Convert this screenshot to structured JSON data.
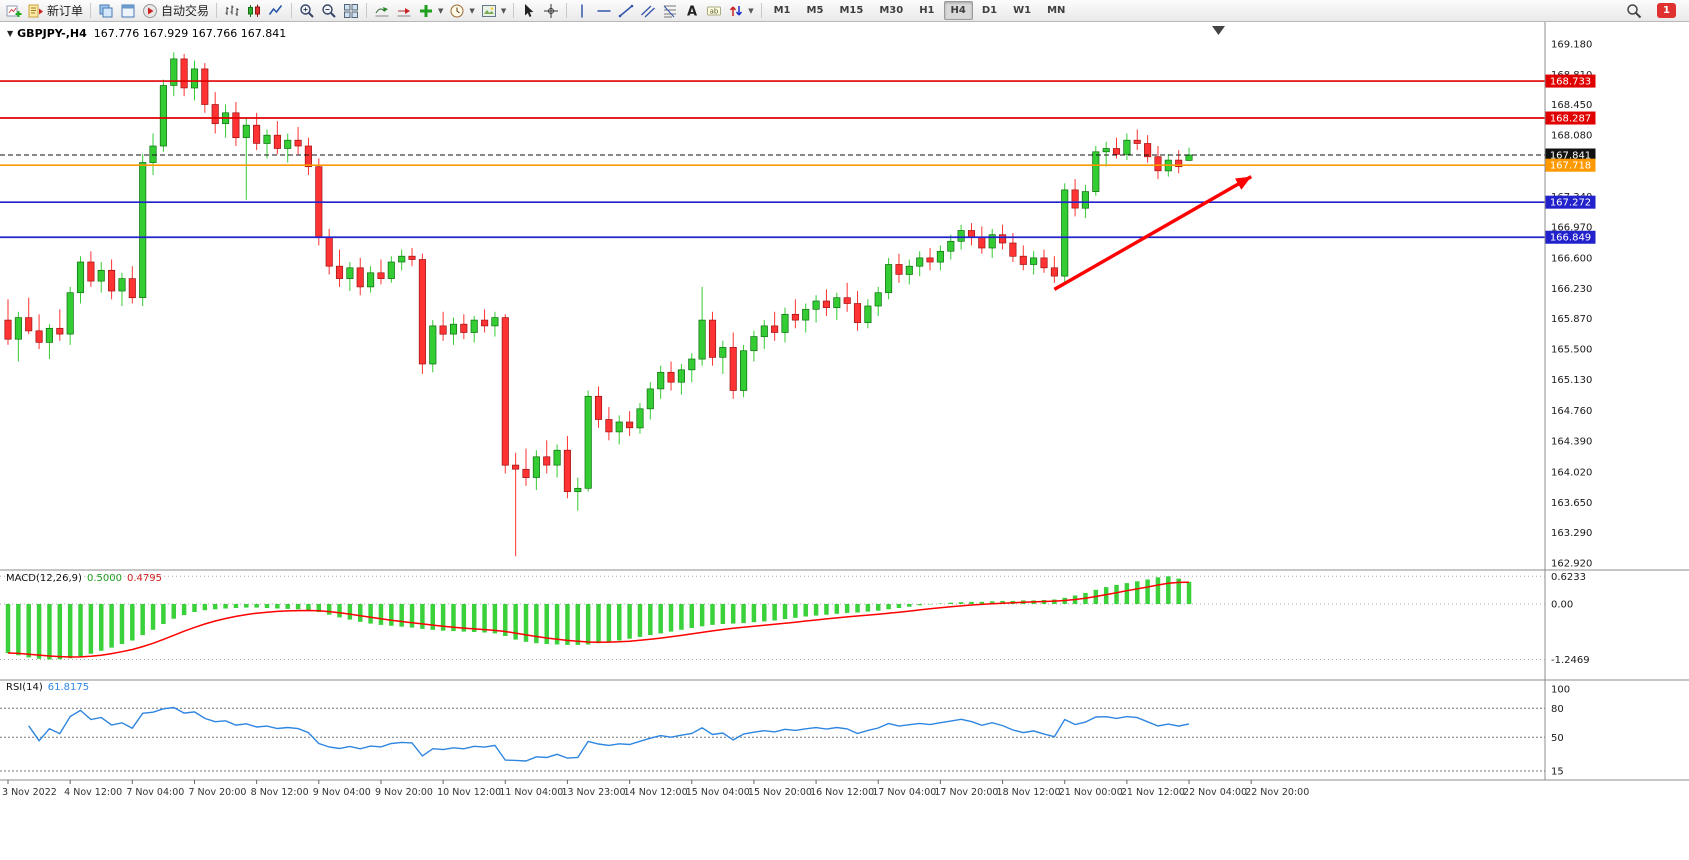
{
  "toolbar": {
    "items": [
      {
        "type": "icon",
        "name": "new-chart-icon",
        "icon": "chart-plus"
      },
      {
        "type": "button",
        "name": "new-order-button",
        "icon": "order",
        "label": "新订单"
      },
      {
        "type": "sep"
      },
      {
        "type": "icon",
        "name": "market-watch-icon",
        "icon": "layers"
      },
      {
        "type": "icon",
        "name": "navigator-icon",
        "icon": "window"
      },
      {
        "type": "button",
        "name": "autotrading-button",
        "icon": "play-red",
        "label": "自动交易"
      },
      {
        "type": "sep"
      },
      {
        "type": "icon",
        "name": "bar-chart-icon",
        "icon": "bars"
      },
      {
        "type": "icon",
        "name": "candlestick-chart-icon",
        "icon": "candles"
      },
      {
        "type": "icon",
        "name": "line-chart-icon",
        "icon": "linechart"
      },
      {
        "type": "sep"
      },
      {
        "type": "icon",
        "name": "zoom-in-icon",
        "icon": "zoom-in"
      },
      {
        "type": "icon",
        "name": "zoom-out-icon",
        "icon": "zoom-out"
      },
      {
        "type": "icon",
        "name": "tile-windows-icon",
        "icon": "grid"
      },
      {
        "type": "sep"
      },
      {
        "type": "icon",
        "name": "auto-scroll-icon",
        "icon": "autoscroll"
      },
      {
        "type": "icon",
        "name": "chart-shift-icon",
        "icon": "shift"
      },
      {
        "type": "icon-drop",
        "name": "indicators-menu-icon",
        "icon": "plus-green"
      },
      {
        "type": "icon-drop",
        "name": "periods-menu-icon",
        "icon": "clock"
      },
      {
        "type": "icon-drop",
        "name": "templates-menu-icon",
        "icon": "template"
      },
      {
        "type": "sep"
      },
      {
        "type": "icon",
        "name": "cursor-icon",
        "icon": "cursor"
      },
      {
        "type": "icon",
        "name": "crosshair-icon",
        "icon": "crosshair"
      },
      {
        "type": "sep"
      },
      {
        "type": "icon",
        "name": "vertical-line-icon",
        "icon": "vline"
      },
      {
        "type": "icon",
        "name": "horizontal-line-icon",
        "icon": "hline"
      },
      {
        "type": "icon",
        "name": "trendline-icon",
        "icon": "trend"
      },
      {
        "type": "icon",
        "name": "equidistant-channel-icon",
        "icon": "channel"
      },
      {
        "type": "icon",
        "name": "fibonacci-icon",
        "icon": "fibo"
      },
      {
        "type": "icon",
        "name": "text-icon",
        "icon": "textA"
      },
      {
        "type": "icon",
        "name": "text-label-icon",
        "icon": "label"
      },
      {
        "type": "icon-drop",
        "name": "arrows-tool-icon",
        "icon": "arrows"
      },
      {
        "type": "sep"
      }
    ],
    "timeframes": [
      "M1",
      "M5",
      "M15",
      "M30",
      "H1",
      "H4",
      "D1",
      "W1",
      "MN"
    ],
    "active_timeframe": "H4",
    "notification_count": "1"
  },
  "chart_header": {
    "symbol_period": "GBPJPY-,H4",
    "ohlc_text": "167.776 167.929 167.766 167.841"
  },
  "chart_data": {
    "price": {
      "type": "candlestick",
      "title": "GBPJPY- H4",
      "up_color": "#33cc33",
      "down_color": "#ff3333",
      "visible_price_range": [
        162.92,
        169.18
      ],
      "axis_labels": [
        "169.180",
        "168.810",
        "168.450",
        "168.080",
        "167.710",
        "167.340",
        "166.970",
        "166.600",
        "166.230",
        "165.870",
        "165.500",
        "165.130",
        "164.760",
        "164.390",
        "164.020",
        "163.650",
        "163.290",
        "162.920"
      ],
      "current_price": "167.841",
      "levels": [
        {
          "price": 168.733,
          "label": "168.733",
          "color": "#e00000",
          "name": "resistance-line-1",
          "style": "solid"
        },
        {
          "price": 168.287,
          "label": "168.287",
          "color": "#e00000",
          "name": "resistance-line-2",
          "style": "solid"
        },
        {
          "price": 167.841,
          "label": "167.841",
          "color": "#111111",
          "name": "current-price-line",
          "style": "dashed"
        },
        {
          "price": 167.718,
          "label": "167.718",
          "color": "#ff9900",
          "name": "pivot-line",
          "style": "solid"
        },
        {
          "price": 167.272,
          "label": "167.272",
          "color": "#2222cc",
          "name": "support-line-1",
          "style": "solid"
        },
        {
          "price": 166.849,
          "label": "166.849",
          "color": "#2222cc",
          "name": "support-line-2",
          "style": "solid"
        }
      ],
      "annotations": {
        "trend_arrow": {
          "from_bar": 101,
          "from_price": 166.22,
          "to_bar": 120,
          "to_price": 167.58,
          "color": "#ff0000"
        }
      },
      "time_labels": [
        "3 Nov 2022",
        "4 Nov 12:00",
        "7 Nov 04:00",
        "7 Nov 20:00",
        "8 Nov 12:00",
        "9 Nov 04:00",
        "9 Nov 20:00",
        "10 Nov 12:00",
        "11 Nov 04:00",
        "13 Nov 23:00",
        "14 Nov 12:00",
        "15 Nov 04:00",
        "15 Nov 20:00",
        "16 Nov 12:00",
        "17 Nov 04:00",
        "17 Nov 20:00",
        "18 Nov 12:00",
        "21 Nov 00:00",
        "21 Nov 12:00",
        "22 Nov 04:00",
        "22 Nov 20:00"
      ],
      "bars_per_label": 6,
      "ohlc": [
        [
          165.85,
          166.1,
          165.55,
          165.62
        ],
        [
          165.62,
          165.95,
          165.35,
          165.88
        ],
        [
          165.88,
          166.12,
          165.68,
          165.72
        ],
        [
          165.72,
          165.92,
          165.5,
          165.58
        ],
        [
          165.58,
          165.8,
          165.38,
          165.75
        ],
        [
          165.75,
          165.98,
          165.6,
          165.68
        ],
        [
          165.68,
          166.25,
          165.55,
          166.18
        ],
        [
          166.18,
          166.62,
          166.05,
          166.55
        ],
        [
          166.55,
          166.68,
          166.25,
          166.32
        ],
        [
          166.32,
          166.55,
          166.18,
          166.45
        ],
        [
          166.45,
          166.58,
          166.1,
          166.2
        ],
        [
          166.2,
          166.42,
          166.02,
          166.35
        ],
        [
          166.35,
          166.5,
          166.05,
          166.12
        ],
        [
          166.12,
          167.85,
          166.02,
          167.75
        ],
        [
          167.75,
          168.1,
          167.6,
          167.95
        ],
        [
          167.95,
          168.75,
          167.88,
          168.68
        ],
        [
          168.68,
          169.08,
          168.55,
          169.0
        ],
        [
          169.0,
          169.06,
          168.55,
          168.65
        ],
        [
          168.65,
          168.98,
          168.5,
          168.88
        ],
        [
          168.88,
          168.95,
          168.35,
          168.45
        ],
        [
          168.45,
          168.6,
          168.1,
          168.22
        ],
        [
          168.22,
          168.45,
          168.05,
          168.35
        ],
        [
          168.35,
          168.48,
          167.95,
          168.05
        ],
        [
          168.05,
          168.3,
          167.3,
          168.2
        ],
        [
          168.2,
          168.35,
          167.9,
          167.98
        ],
        [
          167.98,
          168.15,
          167.8,
          168.08
        ],
        [
          168.08,
          168.25,
          167.85,
          167.92
        ],
        [
          167.92,
          168.1,
          167.75,
          168.02
        ],
        [
          168.02,
          168.18,
          167.85,
          167.95
        ],
        [
          167.95,
          168.05,
          167.6,
          167.7
        ],
        [
          167.7,
          167.8,
          166.75,
          166.85
        ],
        [
          166.85,
          166.95,
          166.4,
          166.5
        ],
        [
          166.5,
          166.7,
          166.25,
          166.35
        ],
        [
          166.35,
          166.55,
          166.2,
          166.48
        ],
        [
          166.48,
          166.6,
          166.15,
          166.25
        ],
        [
          166.25,
          166.5,
          166.18,
          166.42
        ],
        [
          166.42,
          166.58,
          166.28,
          166.35
        ],
        [
          166.35,
          166.62,
          166.3,
          166.55
        ],
        [
          166.55,
          166.7,
          166.45,
          166.62
        ],
        [
          166.62,
          166.72,
          166.5,
          166.58
        ],
        [
          166.58,
          166.65,
          165.2,
          165.32
        ],
        [
          165.32,
          165.85,
          165.22,
          165.78
        ],
        [
          165.78,
          165.95,
          165.6,
          165.68
        ],
        [
          165.68,
          165.88,
          165.55,
          165.8
        ],
        [
          165.8,
          165.92,
          165.62,
          165.7
        ],
        [
          165.7,
          165.9,
          165.58,
          165.85
        ],
        [
          165.85,
          165.98,
          165.7,
          165.78
        ],
        [
          165.78,
          165.95,
          165.65,
          165.88
        ],
        [
          165.88,
          165.92,
          164.0,
          164.1
        ],
        [
          164.1,
          164.25,
          163.0,
          164.05
        ],
        [
          164.05,
          164.3,
          163.85,
          163.95
        ],
        [
          163.95,
          164.28,
          163.8,
          164.2
        ],
        [
          164.2,
          164.4,
          164.0,
          164.1
        ],
        [
          164.1,
          164.35,
          163.95,
          164.28
        ],
        [
          164.28,
          164.45,
          163.7,
          163.78
        ],
        [
          163.78,
          163.95,
          163.55,
          163.82
        ],
        [
          163.82,
          165.0,
          163.78,
          164.93
        ],
        [
          164.93,
          165.05,
          164.55,
          164.65
        ],
        [
          164.65,
          164.8,
          164.4,
          164.5
        ],
        [
          164.5,
          164.7,
          164.35,
          164.62
        ],
        [
          164.62,
          164.75,
          164.45,
          164.55
        ],
        [
          164.55,
          164.85,
          164.48,
          164.78
        ],
        [
          164.78,
          165.1,
          164.65,
          165.02
        ],
        [
          165.02,
          165.3,
          164.9,
          165.22
        ],
        [
          165.22,
          165.35,
          165.0,
          165.1
        ],
        [
          165.1,
          165.32,
          164.95,
          165.25
        ],
        [
          165.25,
          165.45,
          165.1,
          165.38
        ],
        [
          165.38,
          166.25,
          165.3,
          165.85
        ],
        [
          165.85,
          165.95,
          165.3,
          165.4
        ],
        [
          165.4,
          165.6,
          165.2,
          165.52
        ],
        [
          165.52,
          165.7,
          164.9,
          165.0
        ],
        [
          165.0,
          165.55,
          164.92,
          165.48
        ],
        [
          165.48,
          165.72,
          165.35,
          165.65
        ],
        [
          165.65,
          165.85,
          165.5,
          165.78
        ],
        [
          165.78,
          165.95,
          165.6,
          165.7
        ],
        [
          165.7,
          166.0,
          165.58,
          165.92
        ],
        [
          165.92,
          166.1,
          165.75,
          165.85
        ],
        [
          165.85,
          166.05,
          165.7,
          165.98
        ],
        [
          165.98,
          166.15,
          165.82,
          166.08
        ],
        [
          166.08,
          166.22,
          165.9,
          166.0
        ],
        [
          166.0,
          166.18,
          165.85,
          166.12
        ],
        [
          166.12,
          166.3,
          165.95,
          166.05
        ],
        [
          166.05,
          166.2,
          165.72,
          165.82
        ],
        [
          165.82,
          166.1,
          165.75,
          166.02
        ],
        [
          166.02,
          166.25,
          165.9,
          166.18
        ],
        [
          166.18,
          166.6,
          166.1,
          166.52
        ],
        [
          166.52,
          166.65,
          166.3,
          166.4
        ],
        [
          166.4,
          166.58,
          166.28,
          166.5
        ],
        [
          166.5,
          166.68,
          166.38,
          166.6
        ],
        [
          166.6,
          166.72,
          166.45,
          166.55
        ],
        [
          166.55,
          166.75,
          166.45,
          166.68
        ],
        [
          166.68,
          166.88,
          166.58,
          166.8
        ],
        [
          166.8,
          167.0,
          166.7,
          166.93
        ],
        [
          166.93,
          167.02,
          166.75,
          166.85
        ],
        [
          166.85,
          166.98,
          166.65,
          166.72
        ],
        [
          166.72,
          166.95,
          166.6,
          166.88
        ],
        [
          166.88,
          167.0,
          166.7,
          166.78
        ],
        [
          166.78,
          166.9,
          166.55,
          166.62
        ],
        [
          166.62,
          166.75,
          166.45,
          166.52
        ],
        [
          166.52,
          166.68,
          166.4,
          166.6
        ],
        [
          166.6,
          166.7,
          166.42,
          166.48
        ],
        [
          166.48,
          166.62,
          166.3,
          166.38
        ],
        [
          166.38,
          167.5,
          166.28,
          167.42
        ],
        [
          167.42,
          167.55,
          167.1,
          167.2
        ],
        [
          167.2,
          167.48,
          167.08,
          167.4
        ],
        [
          167.4,
          167.95,
          167.35,
          167.88
        ],
        [
          167.88,
          168.0,
          167.7,
          167.92
        ],
        [
          167.92,
          168.05,
          167.8,
          167.85
        ],
        [
          167.85,
          168.1,
          167.78,
          168.02
        ],
        [
          168.02,
          168.15,
          167.9,
          167.98
        ],
        [
          167.98,
          168.08,
          167.75,
          167.82
        ],
        [
          167.82,
          167.95,
          167.55,
          167.65
        ],
        [
          167.65,
          167.85,
          167.58,
          167.78
        ],
        [
          167.78,
          167.9,
          167.62,
          167.7
        ],
        [
          167.776,
          167.929,
          167.766,
          167.841
        ]
      ]
    },
    "macd": {
      "type": "bar",
      "name": "MACD(12,26,9)",
      "value_main": "0.5000",
      "value_signal": "0.4795",
      "scale": [
        "0.6233",
        "0.00",
        "-1.2469"
      ],
      "scale_values": [
        0.6233,
        0,
        -1.2469
      ],
      "signal_period": 9,
      "histogram_color": "#3ad13a",
      "signal_color": "#ff0000",
      "histogram": [
        -1.1,
        -1.15,
        -1.2,
        -1.23,
        -1.2469,
        -1.24,
        -1.22,
        -1.18,
        -1.12,
        -1.05,
        -0.98,
        -0.9,
        -0.82,
        -0.7,
        -0.58,
        -0.45,
        -0.33,
        -0.25,
        -0.18,
        -0.14,
        -0.12,
        -0.1,
        -0.09,
        -0.08,
        -0.08,
        -0.09,
        -0.1,
        -0.11,
        -0.12,
        -0.14,
        -0.18,
        -0.24,
        -0.3,
        -0.35,
        -0.4,
        -0.44,
        -0.47,
        -0.49,
        -0.51,
        -0.53,
        -0.56,
        -0.58,
        -0.6,
        -0.61,
        -0.62,
        -0.63,
        -0.64,
        -0.66,
        -0.72,
        -0.8,
        -0.85,
        -0.88,
        -0.9,
        -0.91,
        -0.92,
        -0.92,
        -0.91,
        -0.88,
        -0.85,
        -0.82,
        -0.78,
        -0.74,
        -0.7,
        -0.66,
        -0.62,
        -0.58,
        -0.54,
        -0.5,
        -0.47,
        -0.45,
        -0.44,
        -0.43,
        -0.41,
        -0.39,
        -0.37,
        -0.34,
        -0.31,
        -0.28,
        -0.26,
        -0.24,
        -0.22,
        -0.2,
        -0.19,
        -0.17,
        -0.15,
        -0.12,
        -0.09,
        -0.06,
        -0.03,
        -0.01,
        0.01,
        0.03,
        0.04,
        0.05,
        0.05,
        0.06,
        0.07,
        0.07,
        0.08,
        0.08,
        0.09,
        0.1,
        0.14,
        0.19,
        0.25,
        0.32,
        0.38,
        0.43,
        0.47,
        0.51,
        0.55,
        0.6,
        0.6233,
        0.57,
        0.5
      ]
    },
    "rsi": {
      "type": "line",
      "name": "RSI(14)",
      "value": "61.8175",
      "period": 14,
      "derived_from": "closes",
      "scale": [
        "100",
        "80",
        "50",
        "15"
      ],
      "scale_values": [
        100,
        80,
        50,
        15
      ],
      "line_color": "#2f86e0"
    }
  }
}
